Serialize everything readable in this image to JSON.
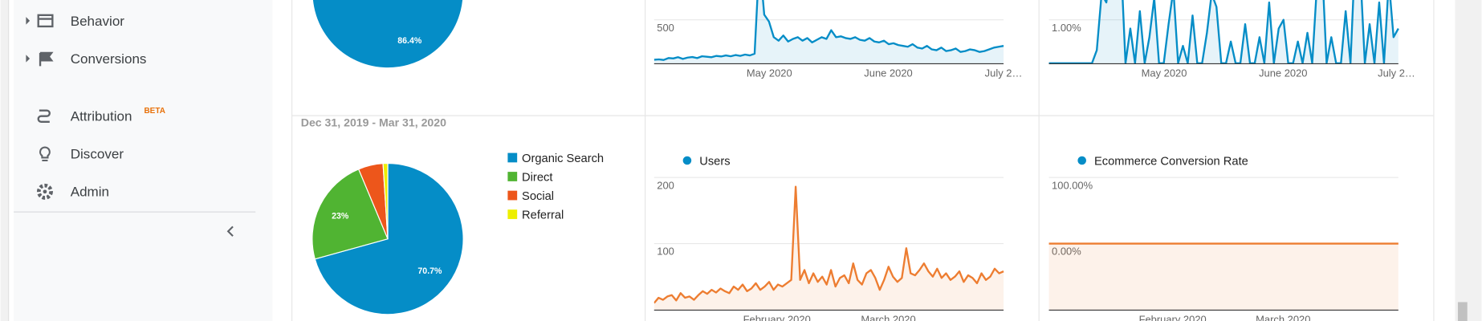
{
  "sidebar": {
    "items": [
      "Behavior",
      "Conversions",
      "Attribution",
      "Discover",
      "Admin"
    ],
    "badge": "BETA"
  },
  "top_row": {
    "pie": {
      "type": "pie",
      "values": [
        86.4
      ],
      "value_labels": [
        "86.4%"
      ],
      "colors": [
        "#058dc7"
      ]
    },
    "users": {
      "type": "line",
      "series": [
        {
          "color": "#058dc7",
          "values": [
            40,
            45,
            38,
            60,
            55,
            70,
            50,
            65,
            72,
            60,
            80,
            75,
            70,
            85,
            78,
            90,
            80,
            95,
            85,
            100,
            90,
            110,
            1200,
            560,
            480,
            300,
            260,
            320,
            250,
            280,
            300,
            260,
            290,
            240,
            270,
            300,
            280,
            380,
            300,
            310,
            290,
            280,
            300,
            270,
            260,
            290,
            250,
            240,
            260,
            220,
            230,
            210,
            200,
            190,
            220,
            180,
            170,
            200,
            160,
            150,
            180,
            140,
            150,
            170,
            130,
            140,
            160,
            150,
            130,
            140,
            160,
            180,
            190,
            200
          ]
        }
      ],
      "ylim": [
        0,
        1000
      ],
      "yticks": [
        500
      ],
      "x_labels": [
        "May 2020",
        "June 2020",
        "July 2…"
      ]
    },
    "conversion": {
      "type": "line",
      "series": [
        {
          "color": "#058dc7",
          "values": [
            0,
            0,
            0,
            0,
            0,
            0,
            0,
            0,
            0,
            0,
            0.3,
            1.6,
            1.4,
            2.2,
            1.8,
            2.5,
            0,
            0.8,
            0,
            1.2,
            0,
            0.6,
            1.5,
            0,
            0,
            0.9,
            1.7,
            0,
            0.4,
            0,
            1.1,
            0,
            0,
            0.7,
            1.6,
            1.3,
            0,
            0,
            0.5,
            0,
            0,
            0.9,
            0,
            0,
            0.6,
            0,
            1.4,
            0,
            0.8,
            1.0,
            0,
            0,
            0.5,
            0,
            0.7,
            0,
            1.8,
            2.4,
            0,
            0.6,
            0,
            0,
            1.2,
            0,
            2.6,
            2.2,
            0,
            0.9,
            0,
            1.4,
            0,
            1.9,
            0.6,
            0.8
          ]
        }
      ],
      "ylim": [
        0,
        2
      ],
      "yticks": [
        {
          "value": 1,
          "label": "1.00%"
        }
      ],
      "x_labels": [
        "May 2020",
        "June 2020",
        "July 2…"
      ]
    }
  },
  "bottom_row": {
    "date_range": "Dec 31, 2019 - Mar 31, 2020",
    "pie": {
      "type": "pie",
      "categories": [
        "Organic Search",
        "Direct",
        "Social",
        "Referral"
      ],
      "values": [
        70.7,
        23,
        5.3,
        1.0
      ],
      "value_labels": [
        "70.7%",
        "23%",
        null,
        null
      ],
      "colors": [
        "#058dc7",
        "#50b432",
        "#ed561b",
        "#edef00"
      ]
    },
    "users": {
      "type": "line",
      "series": [
        {
          "name": "Users",
          "color": "#ed7d31",
          "legend_color": "#058dc7",
          "values": [
            10,
            18,
            15,
            20,
            22,
            14,
            25,
            18,
            20,
            15,
            22,
            28,
            24,
            30,
            26,
            32,
            28,
            25,
            35,
            30,
            38,
            28,
            32,
            40,
            30,
            35,
            42,
            30,
            38,
            35,
            40,
            45,
            186,
            45,
            60,
            40,
            55,
            42,
            50,
            38,
            60,
            35,
            48,
            52,
            40,
            70,
            45,
            38,
            55,
            60,
            48,
            30,
            45,
            65,
            50,
            42,
            48,
            93,
            55,
            52,
            60,
            70,
            58,
            50,
            62,
            48,
            55,
            45,
            50,
            58,
            42,
            52,
            48,
            40,
            55,
            45,
            50,
            62,
            55,
            58
          ]
        }
      ],
      "ylim": [
        0,
        200
      ],
      "yticks": [
        200,
        100
      ],
      "x_labels": [
        "February 2020",
        "March 2020"
      ]
    },
    "conversion": {
      "type": "line",
      "series": [
        {
          "name": "Ecommerce Conversion Rate",
          "color": "#ed7d31",
          "legend_color": "#058dc7",
          "values": [
            0,
            0,
            0,
            0,
            0,
            0,
            0,
            0,
            0,
            0,
            0,
            0,
            0,
            0,
            0,
            0,
            0,
            0,
            0,
            0
          ]
        }
      ],
      "ylim": [
        -100,
        100
      ],
      "yticks": [
        {
          "value": 100,
          "label": "100.00%"
        },
        {
          "value": 0,
          "label": "0.00%"
        }
      ],
      "x_labels": [
        "February 2020",
        "March 2020"
      ]
    }
  }
}
